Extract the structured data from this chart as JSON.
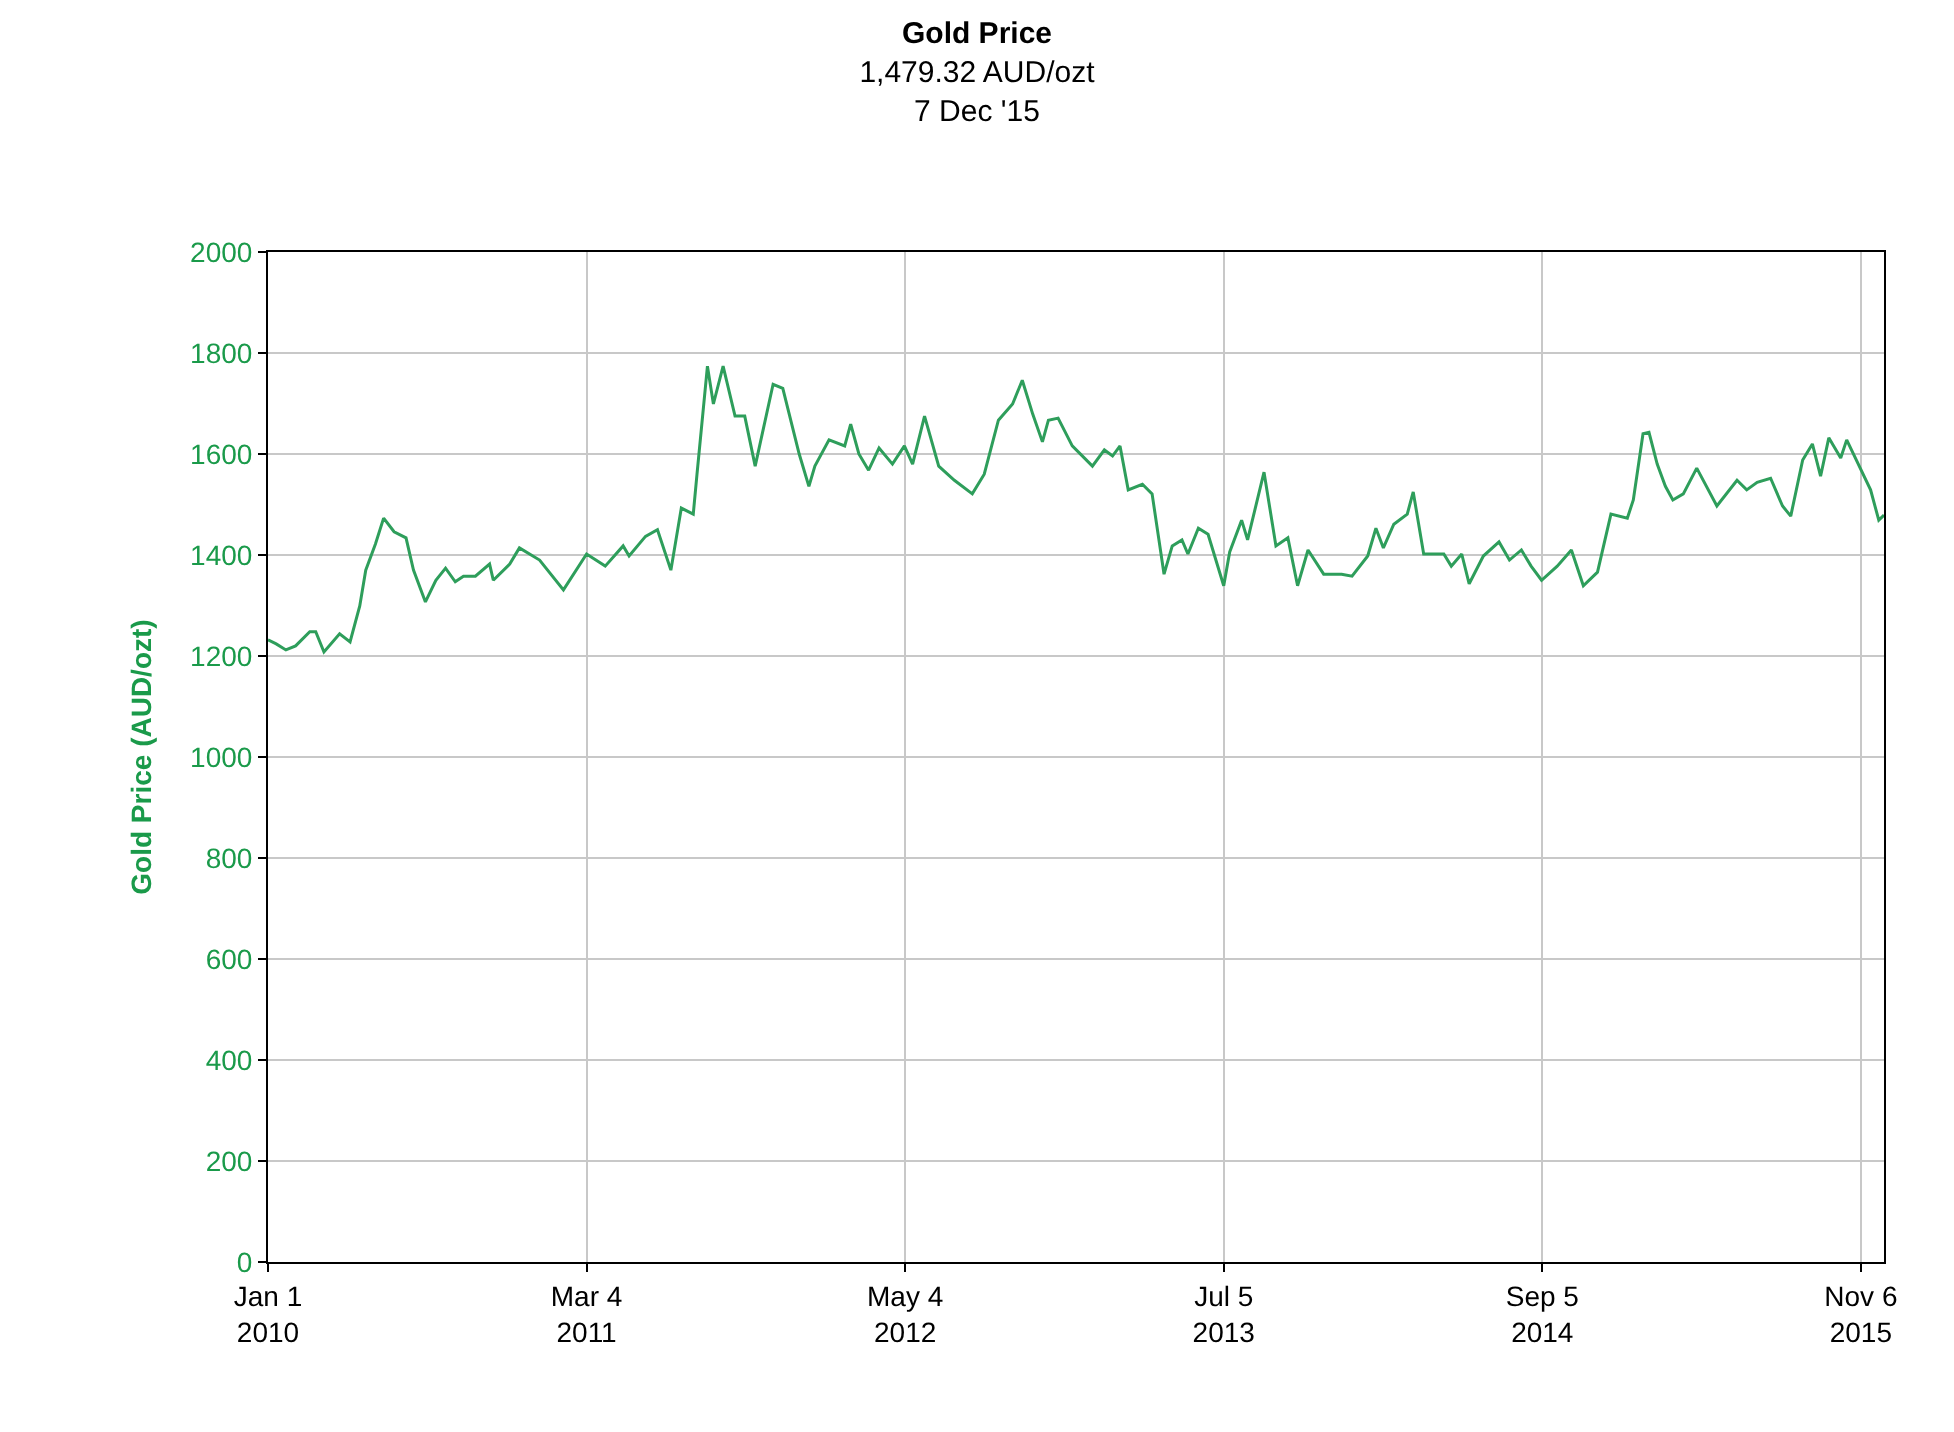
{
  "chart_data": {
    "type": "line",
    "title": "Gold Price",
    "subtitle": "1,479.32 AUD/ozt\n7 Dec '15",
    "ylabel": "Gold Price (AUD/ozt)",
    "xlim": [
      "2010-01-01",
      "2015-12-07"
    ],
    "xticks": [
      {
        "value": "2010-01-01",
        "label": "Jan 1\n2010"
      },
      {
        "value": "2011-03-04",
        "label": "Mar 4\n2011"
      },
      {
        "value": "2012-05-04",
        "label": "May 4\n2012"
      },
      {
        "value": "2013-07-05",
        "label": "Jul 5\n2013"
      },
      {
        "value": "2014-09-05",
        "label": "Sep 5\n2014"
      },
      {
        "value": "2015-11-06",
        "label": "Nov 6\n2015"
      }
    ],
    "ylim": [
      0,
      2000
    ],
    "yticks": [
      0,
      200,
      400,
      600,
      800,
      1000,
      1200,
      1400,
      1600,
      1800,
      2000
    ],
    "grid": true,
    "marker": "none",
    "line_style": "solid",
    "x": [
      "2010-01-01",
      "2010-01-12",
      "2010-01-25",
      "2010-02-07",
      "2010-02-26",
      "2010-03-06",
      "2010-03-17",
      "2010-04-07",
      "2010-04-21",
      "2010-05-04",
      "2010-05-12",
      "2010-05-25",
      "2010-06-05",
      "2010-06-19",
      "2010-07-05",
      "2010-07-15",
      "2010-07-31",
      "2010-08-14",
      "2010-08-27",
      "2010-09-09",
      "2010-09-20",
      "2010-10-06",
      "2010-10-25",
      "2010-10-30",
      "2010-11-21",
      "2010-12-04",
      "2010-12-31",
      "2011-02-01",
      "2011-03-04",
      "2011-03-29",
      "2011-04-22",
      "2011-04-30",
      "2011-05-22",
      "2011-06-07",
      "2011-06-25",
      "2011-07-09",
      "2011-07-25",
      "2011-07-30",
      "2011-08-13",
      "2011-08-21",
      "2011-09-03",
      "2011-09-19",
      "2011-10-02",
      "2011-10-16",
      "2011-11-09",
      "2011-11-22",
      "2011-12-14",
      "2011-12-27",
      "2012-01-04",
      "2012-01-23",
      "2012-02-13",
      "2012-02-21",
      "2012-03-03",
      "2012-03-16",
      "2012-03-30",
      "2012-04-17",
      "2012-05-03",
      "2012-05-14",
      "2012-05-30",
      "2012-06-18",
      "2012-07-09",
      "2012-08-02",
      "2012-08-18",
      "2012-09-06",
      "2012-09-25",
      "2012-10-08",
      "2012-10-22",
      "2012-11-04",
      "2012-11-12",
      "2012-11-25",
      "2012-12-14",
      "2013-01-10",
      "2013-01-26",
      "2013-02-06",
      "2013-02-16",
      "2013-02-27",
      "2013-03-18",
      "2013-03-31",
      "2013-04-16",
      "2013-04-27",
      "2013-05-10",
      "2013-05-18",
      "2013-06-01",
      "2013-06-14",
      "2013-07-05",
      "2013-07-13",
      "2013-07-29",
      "2013-08-06",
      "2013-08-28",
      "2013-09-13",
      "2013-09-29",
      "2013-10-12",
      "2013-10-26",
      "2013-11-16",
      "2013-11-29",
      "2013-12-10",
      "2013-12-24",
      "2014-01-14",
      "2014-01-25",
      "2014-02-04",
      "2014-02-18",
      "2014-03-08",
      "2014-03-16",
      "2014-03-30",
      "2014-04-26",
      "2014-05-06",
      "2014-05-20",
      "2014-05-30",
      "2014-06-18",
      "2014-07-09",
      "2014-07-23",
      "2014-08-08",
      "2014-08-21",
      "2014-09-04",
      "2014-09-25",
      "2014-10-14",
      "2014-10-30",
      "2014-11-18",
      "2014-12-06",
      "2014-12-28",
      "2015-01-05",
      "2015-01-18",
      "2015-01-26",
      "2015-02-06",
      "2015-02-17",
      "2015-02-27",
      "2015-03-13",
      "2015-03-31",
      "2015-04-27",
      "2015-05-24",
      "2015-06-06",
      "2015-06-20",
      "2015-07-08",
      "2015-07-24",
      "2015-08-04",
      "2015-08-20",
      "2015-09-02",
      "2015-09-13",
      "2015-09-24",
      "2015-10-10",
      "2015-10-18",
      "2015-11-19",
      "2015-11-30",
      "2015-12-07"
    ],
    "series": [
      {
        "color": "#2e9e5b",
        "values": [
          1232,
          1224,
          1212,
          1220,
          1248,
          1248,
          1208,
          1244,
          1228,
          1299,
          1370,
          1422,
          1473,
          1446,
          1434,
          1370,
          1307,
          1350,
          1374,
          1347,
          1358,
          1358,
          1382,
          1350,
          1382,
          1414,
          1390,
          1331,
          1402,
          1378,
          1418,
          1398,
          1437,
          1450,
          1370,
          1493,
          1481,
          1560,
          1774,
          1699,
          1774,
          1675,
          1675,
          1576,
          1738,
          1730,
          1600,
          1536,
          1576,
          1628,
          1616,
          1659,
          1600,
          1568,
          1612,
          1580,
          1616,
          1580,
          1675,
          1576,
          1548,
          1521,
          1560,
          1667,
          1699,
          1746,
          1679,
          1624,
          1667,
          1671,
          1616,
          1576,
          1608,
          1596,
          1616,
          1529,
          1540,
          1521,
          1362,
          1418,
          1430,
          1402,
          1453,
          1441,
          1339,
          1406,
          1469,
          1430,
          1564,
          1418,
          1434,
          1339,
          1410,
          1362,
          1362,
          1362,
          1358,
          1398,
          1453,
          1414,
          1461,
          1481,
          1525,
          1402,
          1402,
          1378,
          1402,
          1343,
          1398,
          1426,
          1390,
          1410,
          1378,
          1350,
          1378,
          1410,
          1339,
          1366,
          1481,
          1473,
          1509,
          1640,
          1643,
          1580,
          1536,
          1509,
          1521,
          1572,
          1497,
          1548,
          1529,
          1544,
          1552,
          1497,
          1477,
          1588,
          1620,
          1556,
          1632,
          1592,
          1628,
          1529,
          1469,
          1479
        ]
      }
    ]
  }
}
